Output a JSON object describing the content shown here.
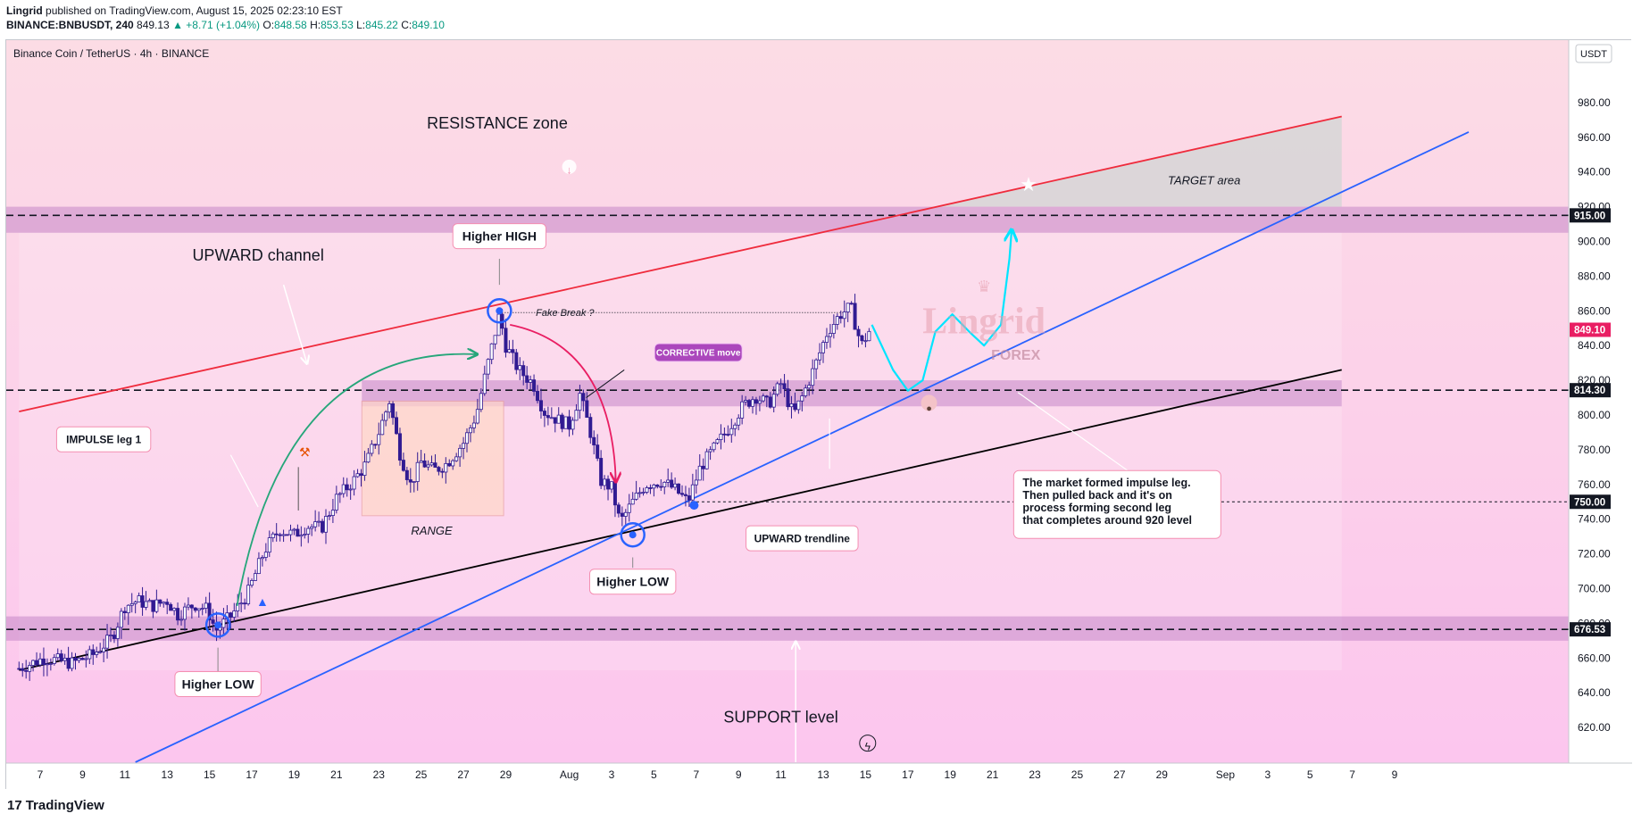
{
  "header": {
    "author": "Lingrid",
    "published": "published on TradingView.com, August 15, 2025 02:23:10 EST",
    "symbol": "BINANCE:BNBUSDT, 240",
    "last": "849.13",
    "change": "▲ +8.71 (+1.04%)",
    "o_label": "O:",
    "o": "848.58",
    "h_label": "H:",
    "h": "853.53",
    "l_label": "L:",
    "l": "845.22",
    "c_label": "C:",
    "c": "849.10"
  },
  "footer": {
    "brand": "TradingView"
  },
  "chart_data": {
    "type": "candlestick",
    "title": "Binance Coin / TetherUS · 4h · BINANCE",
    "currency": "USDT",
    "y_ticks": [
      620,
      640,
      660,
      680,
      700,
      720,
      740,
      760,
      780,
      800,
      820,
      840,
      860,
      880,
      900,
      920,
      940,
      960,
      980
    ],
    "ylim": [
      600,
      1000
    ],
    "x_ticks": [
      {
        "label": "7",
        "day": 7
      },
      {
        "label": "9",
        "day": 9
      },
      {
        "label": "11",
        "day": 11
      },
      {
        "label": "13",
        "day": 13
      },
      {
        "label": "15",
        "day": 15
      },
      {
        "label": "17",
        "day": 17
      },
      {
        "label": "19",
        "day": 19
      },
      {
        "label": "21",
        "day": 21
      },
      {
        "label": "23",
        "day": 23
      },
      {
        "label": "25",
        "day": 25
      },
      {
        "label": "27",
        "day": 27
      },
      {
        "label": "29",
        "day": 29
      },
      {
        "label": "Aug",
        "day": 32
      },
      {
        "label": "3",
        "day": 34
      },
      {
        "label": "5",
        "day": 36
      },
      {
        "label": "7",
        "day": 38
      },
      {
        "label": "9",
        "day": 40
      },
      {
        "label": "11",
        "day": 42
      },
      {
        "label": "13",
        "day": 44
      },
      {
        "label": "15",
        "day": 46
      },
      {
        "label": "17",
        "day": 48
      },
      {
        "label": "19",
        "day": 50
      },
      {
        "label": "21",
        "day": 52
      },
      {
        "label": "23",
        "day": 54
      },
      {
        "label": "25",
        "day": 56
      },
      {
        "label": "27",
        "day": 58
      },
      {
        "label": "29",
        "day": 60
      },
      {
        "label": "Sep",
        "day": 63
      },
      {
        "label": "3",
        "day": 65
      },
      {
        "label": "5",
        "day": 67
      },
      {
        "label": "7",
        "day": 69
      },
      {
        "label": "9",
        "day": 71
      }
    ],
    "price_tags": [
      {
        "value": 915.0,
        "label": "915.00",
        "bg": "#131722"
      },
      {
        "value": 849.1,
        "label": "849.10",
        "bg": "#e91e63"
      },
      {
        "value": 814.3,
        "label": "814.30",
        "bg": "#131722"
      },
      {
        "value": 750.0,
        "label": "750.00",
        "bg": "#131722"
      },
      {
        "value": 676.53,
        "label": "676.53",
        "bg": "#131722"
      }
    ],
    "horizontal_levels": [
      915.0,
      814.3,
      676.53
    ],
    "dotted_level": 750.0,
    "zones": [
      {
        "name": "resistance",
        "low": 905,
        "high": 920
      },
      {
        "name": "mid",
        "low": 805,
        "high": 820
      },
      {
        "name": "support",
        "low": 670,
        "high": 684
      }
    ],
    "path": [
      {
        "day": 6.0,
        "price": 654
      },
      {
        "day": 7.2,
        "price": 660
      },
      {
        "day": 8.5,
        "price": 657
      },
      {
        "day": 9.5,
        "price": 662
      },
      {
        "day": 10.4,
        "price": 672
      },
      {
        "day": 11.0,
        "price": 690
      },
      {
        "day": 11.6,
        "price": 693
      },
      {
        "day": 12.3,
        "price": 690
      },
      {
        "day": 13.0,
        "price": 693
      },
      {
        "day": 13.5,
        "price": 685
      },
      {
        "day": 14.3,
        "price": 691
      },
      {
        "day": 14.9,
        "price": 688
      },
      {
        "day": 15.3,
        "price": 676
      },
      {
        "day": 16.0,
        "price": 684
      },
      {
        "day": 16.8,
        "price": 697
      },
      {
        "day": 17.6,
        "price": 722
      },
      {
        "day": 18.3,
        "price": 734
      },
      {
        "day": 19.0,
        "price": 731
      },
      {
        "day": 19.6,
        "price": 736
      },
      {
        "day": 20.3,
        "price": 735
      },
      {
        "day": 21.0,
        "price": 752
      },
      {
        "day": 21.8,
        "price": 762
      },
      {
        "day": 22.4,
        "price": 772
      },
      {
        "day": 23.0,
        "price": 790
      },
      {
        "day": 23.5,
        "price": 808
      },
      {
        "day": 24.0,
        "price": 778
      },
      {
        "day": 24.5,
        "price": 760
      },
      {
        "day": 25.0,
        "price": 773
      },
      {
        "day": 25.6,
        "price": 768
      },
      {
        "day": 26.2,
        "price": 772
      },
      {
        "day": 27.0,
        "price": 784
      },
      {
        "day": 27.6,
        "price": 800
      },
      {
        "day": 28.2,
        "price": 832
      },
      {
        "day": 28.7,
        "price": 858
      },
      {
        "day": 29.0,
        "price": 840
      },
      {
        "day": 29.6,
        "price": 826
      },
      {
        "day": 30.3,
        "price": 818
      },
      {
        "day": 30.8,
        "price": 802
      },
      {
        "day": 31.5,
        "price": 797
      },
      {
        "day": 32.0,
        "price": 794
      },
      {
        "day": 32.5,
        "price": 812
      },
      {
        "day": 33.0,
        "price": 790
      },
      {
        "day": 33.5,
        "price": 762
      },
      {
        "day": 34.0,
        "price": 758
      },
      {
        "day": 34.4,
        "price": 738
      },
      {
        "day": 35.0,
        "price": 750
      },
      {
        "day": 35.6,
        "price": 760
      },
      {
        "day": 36.4,
        "price": 762
      },
      {
        "day": 37.0,
        "price": 757
      },
      {
        "day": 37.6,
        "price": 750
      },
      {
        "day": 38.2,
        "price": 770
      },
      {
        "day": 38.8,
        "price": 780
      },
      {
        "day": 39.5,
        "price": 792
      },
      {
        "day": 40.2,
        "price": 805
      },
      {
        "day": 40.8,
        "price": 811
      },
      {
        "day": 41.4,
        "price": 806
      },
      {
        "day": 42.0,
        "price": 818
      },
      {
        "day": 42.6,
        "price": 800
      },
      {
        "day": 43.1,
        "price": 813
      },
      {
        "day": 43.6,
        "price": 828
      },
      {
        "day": 44.2,
        "price": 848
      },
      {
        "day": 44.8,
        "price": 858
      },
      {
        "day": 45.3,
        "price": 862
      },
      {
        "day": 45.8,
        "price": 840
      },
      {
        "day": 46.2,
        "price": 849
      }
    ],
    "lines": [
      {
        "name": "upward-channel-top",
        "color": "#ef2b3c",
        "from": {
          "day": 6.0,
          "price": 802
        },
        "to": {
          "day": 68.5,
          "price": 972
        }
      },
      {
        "name": "upward-channel-bottom",
        "color": "#000000",
        "from": {
          "day": 6.0,
          "price": 653
        },
        "to": {
          "day": 68.5,
          "price": 826
        }
      },
      {
        "name": "upward-trendline",
        "color": "#2962ff",
        "from": {
          "day": 11.5,
          "price": 600
        },
        "to": {
          "day": 74.5,
          "price": 963
        }
      }
    ],
    "projection": [
      {
        "day": 46.3,
        "price": 852
      },
      {
        "day": 47.3,
        "price": 826
      },
      {
        "day": 48.0,
        "price": 814
      },
      {
        "day": 48.7,
        "price": 820
      },
      {
        "day": 49.3,
        "price": 848
      },
      {
        "day": 50.1,
        "price": 858
      },
      {
        "day": 50.9,
        "price": 848
      },
      {
        "day": 51.6,
        "price": 840
      },
      {
        "day": 52.4,
        "price": 852
      },
      {
        "day": 52.8,
        "price": 890
      },
      {
        "day": 52.9,
        "price": 906
      }
    ],
    "annotations": {
      "resistance_zone": "RESISTANCE zone",
      "target_area": "TARGET area",
      "upward_channel": "UPWARD channel",
      "higher_high": "Higher HIGH",
      "fake_break": "Fake Break ?",
      "corrective_move": "CORRECTIVE move",
      "impulse_leg": "IMPULSE leg 1",
      "range": "RANGE",
      "higher_low_1": "Higher LOW",
      "higher_low_2": "Higher LOW",
      "upward_trendline": "UPWARD trendline",
      "support_level": "SUPPORT level",
      "note_line1": "The market formed impulse leg.",
      "note_line2": "Then pulled back and it's on",
      "note_line3": "process forming second leg",
      "note_line4": "that completes around 920 level",
      "watermark_main": "Lingrid",
      "watermark_sub": "FOREX"
    },
    "colors": {
      "background_top": "#fcdce5",
      "background_bottom": "#fcc6ee",
      "zone": "#c486c9",
      "candle": "#311b92",
      "projection": "#00e5ff",
      "impulse_arrow": "#26a67a",
      "corrective_arrow": "#e91e63",
      "corrective_label_bg": "#ab47bc"
    }
  }
}
